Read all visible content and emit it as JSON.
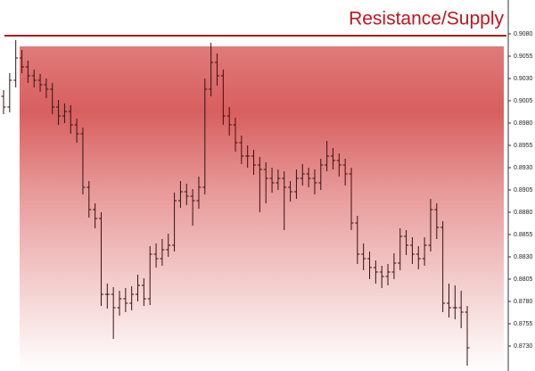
{
  "chart_data": {
    "type": "ohlc",
    "annotation": "Resistance/Supply",
    "resistance": 0.9078,
    "zone_top": 0.9066,
    "color": "#3b0f0f",
    "resistance_color": "#b01c1c",
    "ylim": [
      0.8702,
      0.9118
    ],
    "yticks": [
      {
        "value": 0.908,
        "label": "0.9080"
      },
      0.9055,
      {
        "value": 0.903,
        "label": "0.9030"
      },
      0.9005,
      {
        "value": 0.898,
        "label": "0.8980"
      },
      0.8955,
      {
        "value": 0.893,
        "label": "0.8930"
      },
      0.8905,
      {
        "value": 0.888,
        "label": "0.8880"
      },
      0.8855,
      {
        "value": 0.883,
        "label": "0.8830"
      },
      0.8805,
      {
        "value": 0.878,
        "label": "0.8780"
      },
      0.8755,
      {
        "value": 0.873,
        "label": "0.8730"
      }
    ],
    "open": [
      0.901,
      0.8998,
      0.9028,
      0.9053,
      0.9043,
      0.9033,
      0.9028,
      0.9023,
      0.9018,
      0.8998,
      0.8988,
      0.8993,
      0.8978,
      0.8968,
      0.8908,
      0.8883,
      0.8873,
      0.8788,
      0.8788,
      0.8773,
      0.8783,
      0.8778,
      0.8788,
      0.8798,
      0.8783,
      0.8833,
      0.8828,
      0.8838,
      0.8843,
      0.8893,
      0.8903,
      0.8898,
      0.8893,
      0.8908,
      0.9018,
      0.9048,
      0.9033,
      0.8988,
      0.8978,
      0.8958,
      0.8943,
      0.8943,
      0.8933,
      0.8928,
      0.8918,
      0.8913,
      0.8918,
      0.8908,
      0.8903,
      0.8918,
      0.8923,
      0.8918,
      0.8913,
      0.8933,
      0.8943,
      0.8938,
      0.8933,
      0.8923,
      0.8868,
      0.8833,
      0.8828,
      0.8818,
      0.8813,
      0.8808,
      0.8813,
      0.8823,
      0.8853,
      0.8843,
      0.8833,
      0.8828,
      0.8843,
      0.8883,
      0.8863,
      0.8778,
      0.8773,
      0.8773,
      0.8768
    ],
    "high": [
      0.9017,
      0.9036,
      0.9073,
      0.9062,
      0.905,
      0.904,
      0.9035,
      0.903,
      0.9025,
      0.9006,
      0.9002,
      0.9,
      0.8985,
      0.8975,
      0.8915,
      0.889,
      0.888,
      0.88,
      0.8796,
      0.8792,
      0.8795,
      0.8797,
      0.881,
      0.8806,
      0.8842,
      0.8845,
      0.885,
      0.8856,
      0.8902,
      0.8915,
      0.8912,
      0.8906,
      0.892,
      0.903,
      0.907,
      0.9058,
      0.904,
      0.8998,
      0.8986,
      0.8966,
      0.8955,
      0.895,
      0.8942,
      0.8936,
      0.893,
      0.8928,
      0.8926,
      0.8915,
      0.8928,
      0.8934,
      0.893,
      0.8928,
      0.894,
      0.896,
      0.8952,
      0.8946,
      0.894,
      0.893,
      0.8876,
      0.8845,
      0.8836,
      0.8826,
      0.882,
      0.8822,
      0.8834,
      0.8862,
      0.886,
      0.8852,
      0.8842,
      0.8852,
      0.8895,
      0.889,
      0.887,
      0.88,
      0.8798,
      0.8792,
      0.8775
    ],
    "low": [
      0.899,
      0.8992,
      0.902,
      0.9036,
      0.9025,
      0.902,
      0.9015,
      0.9008,
      0.899,
      0.8978,
      0.898,
      0.8968,
      0.8958,
      0.89,
      0.8874,
      0.8862,
      0.8775,
      0.8772,
      0.8738,
      0.8764,
      0.8768,
      0.877,
      0.878,
      0.8775,
      0.8776,
      0.8818,
      0.882,
      0.883,
      0.8836,
      0.8885,
      0.8888,
      0.8865,
      0.8884,
      0.89,
      0.901,
      0.9022,
      0.8978,
      0.8966,
      0.8948,
      0.8934,
      0.893,
      0.8922,
      0.888,
      0.889,
      0.8902,
      0.8905,
      0.886,
      0.8892,
      0.8895,
      0.891,
      0.8908,
      0.89,
      0.8905,
      0.8926,
      0.8928,
      0.892,
      0.891,
      0.886,
      0.8822,
      0.8815,
      0.8805,
      0.88,
      0.8795,
      0.8798,
      0.8805,
      0.8815,
      0.8832,
      0.8822,
      0.8816,
      0.882,
      0.8836,
      0.885,
      0.8768,
      0.8762,
      0.876,
      0.875,
      0.8708
    ],
    "close": [
      0.8998,
      0.9028,
      0.9053,
      0.9043,
      0.9033,
      0.9028,
      0.9023,
      0.9018,
      0.8998,
      0.8988,
      0.8993,
      0.8978,
      0.8968,
      0.8908,
      0.8883,
      0.8873,
      0.8788,
      0.8788,
      0.8773,
      0.8783,
      0.8778,
      0.8788,
      0.8798,
      0.8783,
      0.8833,
      0.8828,
      0.8838,
      0.8843,
      0.8893,
      0.8903,
      0.8898,
      0.8893,
      0.8908,
      0.9018,
      0.9048,
      0.9033,
      0.8988,
      0.8978,
      0.8958,
      0.8943,
      0.8943,
      0.8933,
      0.8928,
      0.8918,
      0.8913,
      0.8918,
      0.8908,
      0.8903,
      0.8918,
      0.8923,
      0.8918,
      0.8913,
      0.8933,
      0.8943,
      0.8938,
      0.8933,
      0.8923,
      0.8868,
      0.8833,
      0.8828,
      0.8818,
      0.8813,
      0.8808,
      0.8813,
      0.8823,
      0.8853,
      0.8843,
      0.8833,
      0.8828,
      0.8843,
      0.8883,
      0.8863,
      0.8778,
      0.8773,
      0.8773,
      0.8768,
      0.8728
    ]
  }
}
